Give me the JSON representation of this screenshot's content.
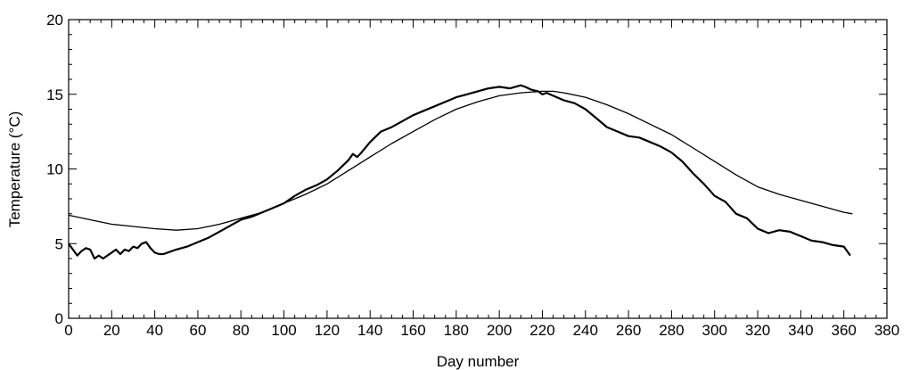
{
  "chart_data": {
    "type": "line",
    "title": "",
    "xlabel": "Day number",
    "ylabel": "Temperature (°C)",
    "xlim": [
      0,
      380
    ],
    "ylim": [
      0,
      20
    ],
    "x_ticks": [
      0,
      20,
      40,
      60,
      80,
      100,
      120,
      140,
      160,
      180,
      200,
      220,
      240,
      260,
      280,
      300,
      320,
      340,
      360,
      380
    ],
    "y_ticks": [
      0,
      5,
      10,
      15,
      20
    ],
    "grid": false,
    "legend": "none",
    "line_color": "#000000",
    "series": [
      {
        "x": [
          0,
          2,
          4,
          6,
          8,
          10,
          12,
          14,
          16,
          18,
          20,
          22,
          24,
          26,
          28,
          30,
          32,
          34,
          36,
          38,
          40,
          42,
          44,
          46,
          48,
          50,
          55,
          60,
          65,
          70,
          75,
          80,
          85,
          90,
          95,
          100,
          105,
          110,
          115,
          120,
          125,
          130,
          132,
          134,
          136,
          140,
          145,
          150,
          155,
          160,
          165,
          170,
          175,
          180,
          185,
          190,
          195,
          200,
          205,
          210,
          212,
          215,
          218,
          220,
          222,
          225,
          230,
          235,
          240,
          245,
          250,
          255,
          260,
          265,
          270,
          275,
          280,
          285,
          290,
          295,
          300,
          305,
          310,
          315,
          320,
          325,
          330,
          335,
          340,
          345,
          350,
          355,
          360,
          363
        ],
        "values": [
          5.0,
          4.6,
          4.2,
          4.5,
          4.7,
          4.6,
          4.0,
          4.2,
          4.0,
          4.2,
          4.4,
          4.6,
          4.3,
          4.6,
          4.5,
          4.8,
          4.7,
          5.0,
          5.1,
          4.7,
          4.4,
          4.3,
          4.3,
          4.4,
          4.5,
          4.6,
          4.8,
          5.1,
          5.4,
          5.8,
          6.2,
          6.6,
          6.8,
          7.1,
          7.4,
          7.7,
          8.2,
          8.6,
          8.9,
          9.3,
          9.9,
          10.6,
          11.0,
          10.8,
          11.1,
          11.8,
          12.5,
          12.8,
          13.2,
          13.6,
          13.9,
          14.2,
          14.5,
          14.8,
          15.0,
          15.2,
          15.4,
          15.5,
          15.4,
          15.6,
          15.5,
          15.3,
          15.2,
          15.0,
          15.1,
          14.9,
          14.6,
          14.4,
          14.0,
          13.4,
          12.8,
          12.5,
          12.2,
          12.1,
          11.8,
          11.5,
          11.1,
          10.5,
          9.7,
          9.0,
          8.2,
          7.8,
          7.0,
          6.7,
          6.0,
          5.7,
          5.9,
          5.8,
          5.5,
          5.2,
          5.1,
          4.9,
          4.8,
          4.2
        ]
      },
      {
        "x": [
          0,
          10,
          20,
          30,
          40,
          50,
          60,
          70,
          80,
          90,
          100,
          110,
          120,
          130,
          140,
          150,
          160,
          170,
          180,
          190,
          200,
          210,
          220,
          225,
          230,
          240,
          250,
          260,
          270,
          280,
          290,
          300,
          310,
          320,
          330,
          340,
          350,
          360,
          364
        ],
        "values": [
          6.9,
          6.6,
          6.3,
          6.15,
          6.0,
          5.9,
          6.0,
          6.3,
          6.7,
          7.1,
          7.7,
          8.3,
          9.0,
          9.9,
          10.8,
          11.7,
          12.5,
          13.3,
          14.0,
          14.5,
          14.9,
          15.1,
          15.2,
          15.2,
          15.1,
          14.8,
          14.3,
          13.7,
          13.0,
          12.3,
          11.4,
          10.5,
          9.6,
          8.8,
          8.3,
          7.9,
          7.5,
          7.1,
          7.0
        ]
      }
    ]
  }
}
